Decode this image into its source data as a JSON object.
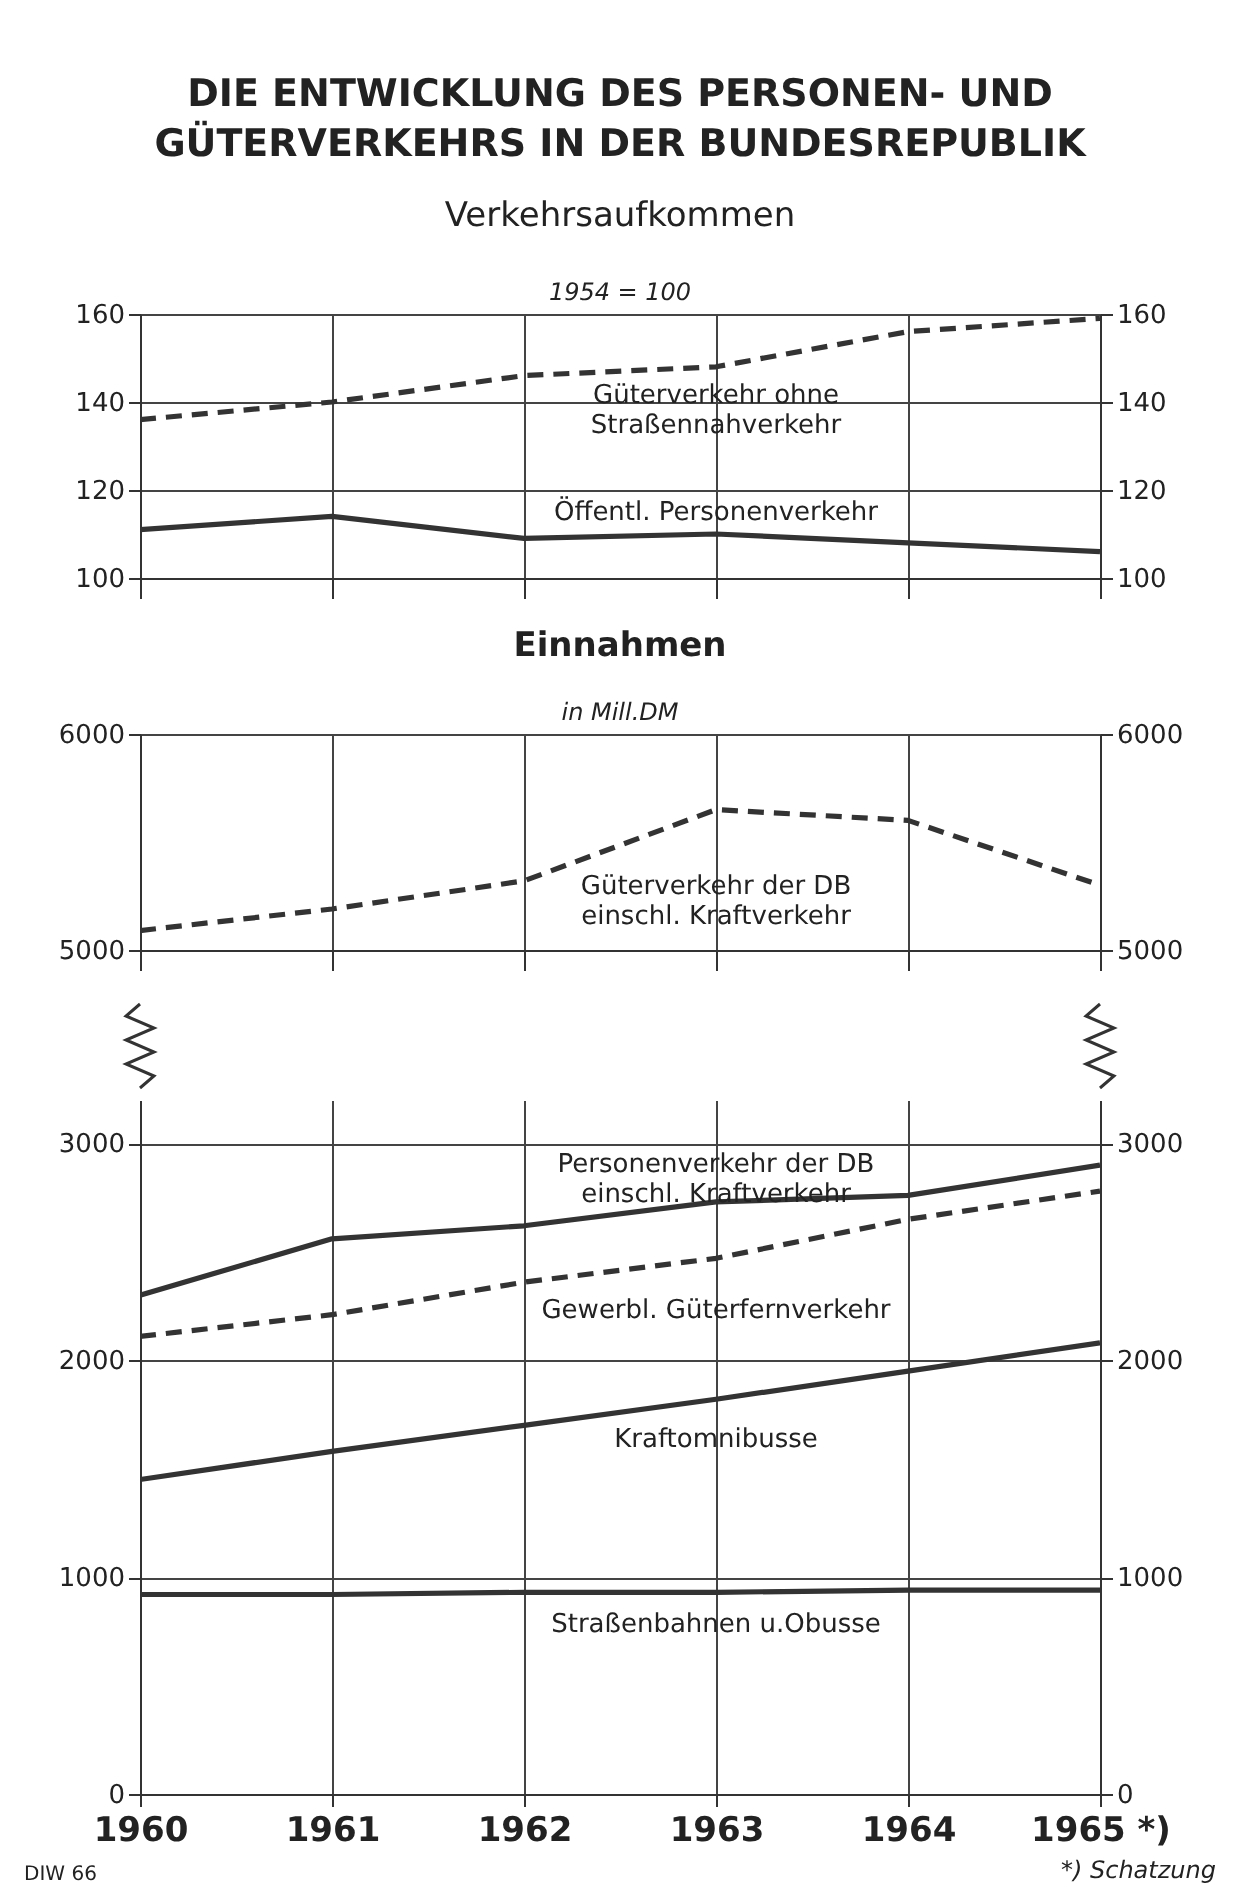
{
  "chart_data": [
    {
      "type": "line",
      "title": "DIE ENTWICKLUNG DES PERSONEN- UND GÜTERVERKEHRS IN DER BUNDESREPUBLIK",
      "subtitle": "Verkehrsaufkommen",
      "ylabel": "1954 = 100",
      "x": [
        1960,
        1961,
        1962,
        1963,
        1964,
        1965
      ],
      "xlim": [
        1960,
        1965
      ],
      "xticks": [
        1960,
        1961,
        1962,
        1963,
        1964,
        1965
      ],
      "ylim": [
        100,
        160
      ],
      "yticks": [
        100,
        120,
        140,
        160
      ],
      "y2lim": [
        100,
        160
      ],
      "y2ticks": [
        100,
        120,
        140,
        160
      ],
      "grid": true,
      "tick_labels": "y",
      "series": [
        {
          "name": "Güterverkehr ohne Straßennahverkehr",
          "color": "#333333",
          "line_style": "dashed",
          "values": [
            136,
            140,
            146,
            148,
            156,
            159
          ]
        },
        {
          "name": "Öffentl. Personenverkehr",
          "color": "#333333",
          "line_style": "solid",
          "values": [
            111,
            114,
            109,
            110,
            108,
            106
          ]
        }
      ]
    },
    {
      "type": "line",
      "title": "Einnahmen",
      "ylabel": "in Mill.DM",
      "x": [
        1960,
        1961,
        1962,
        1963,
        1964,
        1965
      ],
      "xlim": [
        1960,
        1965
      ],
      "xticks": [
        1960,
        1961,
        1962,
        1963,
        1964,
        1965
      ],
      "ylim": [
        5000,
        6000
      ],
      "yticks": [
        5000,
        6000
      ],
      "y2lim": [
        5000,
        6000
      ],
      "y2ticks": [
        5000,
        6000
      ],
      "grid": true,
      "tick_labels": "y",
      "series": [
        {
          "name": "Güterverkehr der DB einschl. Kraftverkehr",
          "color": "#333333",
          "line_style": "dashed",
          "values": [
            5090,
            5190,
            5320,
            5650,
            5600,
            5300
          ]
        }
      ]
    },
    {
      "type": "line",
      "x": [
        1960,
        1961,
        1962,
        1963,
        1964,
        1965
      ],
      "xlim": [
        1960,
        1965
      ],
      "xticks": [
        1960,
        1961,
        1962,
        1963,
        1964,
        {
          "value": 1965,
          "label": "1965 *)"
        }
      ],
      "ylim": [
        0,
        3200
      ],
      "yticks": [
        0,
        1000,
        2000,
        3000
      ],
      "y2lim": [
        0,
        3200
      ],
      "y2ticks": [
        0,
        1000,
        2000,
        3000
      ],
      "grid": true,
      "annotations": [
        "DIW 66",
        "*) Schatzung"
      ],
      "series": [
        {
          "name": "Personenverkehr der DB einschl. Kraftverkehr",
          "color": "#333333",
          "line_style": "solid",
          "values": [
            2300,
            2560,
            2620,
            2730,
            2760,
            2900
          ]
        },
        {
          "name": "Gewerbl. Güterfernverkehr",
          "color": "#333333",
          "line_style": "dashed",
          "values": [
            2110,
            2210,
            2360,
            2470,
            2650,
            2780
          ]
        },
        {
          "name": "Kraftomnibusse",
          "color": "#333333",
          "line_style": "solid",
          "values": [
            1450,
            1580,
            1700,
            1820,
            1950,
            2080
          ]
        },
        {
          "name": "Straßenbahnen u.Obusse",
          "color": "#333333",
          "line_style": "solid",
          "values": [
            920,
            920,
            930,
            930,
            940,
            940
          ]
        }
      ]
    }
  ]
}
